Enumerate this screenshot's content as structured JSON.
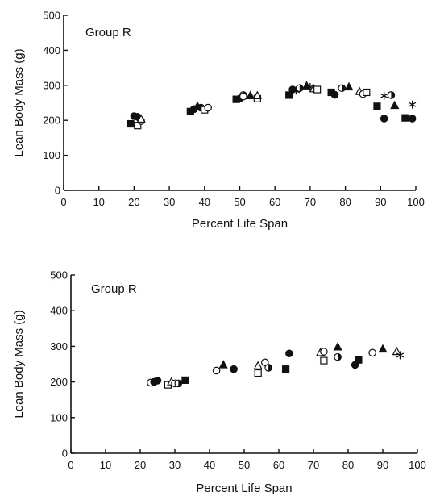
{
  "colors": {
    "ink": "#111111",
    "background": "#ffffff"
  },
  "chart_data": [
    {
      "type": "scatter",
      "title": "Group R",
      "xlabel": "Percent Life Span",
      "ylabel": "Lean Body Mass (g)",
      "xlim": [
        0,
        100
      ],
      "ylim": [
        0,
        500
      ],
      "xticks": [
        "0",
        "10",
        "20",
        "30",
        "40",
        "50",
        "60",
        "70",
        "80",
        "90",
        "100"
      ],
      "yticks": [
        "0",
        "100",
        "200",
        "300",
        "400",
        "500"
      ],
      "grid": false,
      "points": [
        {
          "x": 19,
          "y": 190,
          "m": "square-filled"
        },
        {
          "x": 20,
          "y": 212,
          "m": "circle-filled"
        },
        {
          "x": 21,
          "y": 210,
          "m": "circle-filled"
        },
        {
          "x": 21,
          "y": 185,
          "m": "square-open"
        },
        {
          "x": 22,
          "y": 198,
          "m": "circle-open"
        },
        {
          "x": 22,
          "y": 203,
          "m": "triangle-open"
        },
        {
          "x": 36,
          "y": 225,
          "m": "square-filled"
        },
        {
          "x": 37,
          "y": 232,
          "m": "circle-filled"
        },
        {
          "x": 38,
          "y": 240,
          "m": "triangle-filled"
        },
        {
          "x": 39,
          "y": 236,
          "m": "circle-filled"
        },
        {
          "x": 40,
          "y": 230,
          "m": "square-open"
        },
        {
          "x": 41,
          "y": 236,
          "m": "circle-open"
        },
        {
          "x": 49,
          "y": 260,
          "m": "square-filled"
        },
        {
          "x": 50,
          "y": 262,
          "m": "circle-filled"
        },
        {
          "x": 51,
          "y": 272,
          "m": "circle-half"
        },
        {
          "x": 51,
          "y": 268,
          "m": "circle-open"
        },
        {
          "x": 53,
          "y": 270,
          "m": "triangle-filled"
        },
        {
          "x": 55,
          "y": 262,
          "m": "square-open"
        },
        {
          "x": 55,
          "y": 270,
          "m": "triangle-open"
        },
        {
          "x": 64,
          "y": 272,
          "m": "square-filled"
        },
        {
          "x": 65,
          "y": 288,
          "m": "circle-filled"
        },
        {
          "x": 66,
          "y": 285,
          "m": "star"
        },
        {
          "x": 67,
          "y": 292,
          "m": "circle-half"
        },
        {
          "x": 69,
          "y": 298,
          "m": "triangle-filled"
        },
        {
          "x": 70,
          "y": 295,
          "m": "star"
        },
        {
          "x": 71,
          "y": 290,
          "m": "triangle-open"
        },
        {
          "x": 72,
          "y": 288,
          "m": "square-open"
        },
        {
          "x": 76,
          "y": 280,
          "m": "square-filled"
        },
        {
          "x": 77,
          "y": 273,
          "m": "circle-filled"
        },
        {
          "x": 79,
          "y": 292,
          "m": "circle-half"
        },
        {
          "x": 81,
          "y": 295,
          "m": "triangle-filled"
        },
        {
          "x": 84,
          "y": 282,
          "m": "triangle-open"
        },
        {
          "x": 85,
          "y": 275,
          "m": "circle-open"
        },
        {
          "x": 86,
          "y": 280,
          "m": "square-open"
        },
        {
          "x": 89,
          "y": 240,
          "m": "square-filled"
        },
        {
          "x": 91,
          "y": 205,
          "m": "circle-filled"
        },
        {
          "x": 91,
          "y": 270,
          "m": "star"
        },
        {
          "x": 93,
          "y": 272,
          "m": "circle-half"
        },
        {
          "x": 94,
          "y": 242,
          "m": "triangle-filled"
        },
        {
          "x": 97,
          "y": 207,
          "m": "square-filled"
        },
        {
          "x": 99,
          "y": 205,
          "m": "circle-filled"
        },
        {
          "x": 99,
          "y": 245,
          "m": "star"
        }
      ]
    },
    {
      "type": "scatter",
      "title": "Group R",
      "xlabel": "Percent Life Span",
      "ylabel": "Lean Body Mass (g)",
      "xlim": [
        0,
        100
      ],
      "ylim": [
        0,
        500
      ],
      "xticks": [
        "0",
        "10",
        "20",
        "30",
        "40",
        "50",
        "60",
        "70",
        "80",
        "90",
        "100"
      ],
      "yticks": [
        "0",
        "100",
        "200",
        "300",
        "400",
        "500"
      ],
      "grid": false,
      "points": [
        {
          "x": 23,
          "y": 198,
          "m": "circle-open"
        },
        {
          "x": 24,
          "y": 200,
          "m": "circle-filled"
        },
        {
          "x": 25,
          "y": 204,
          "m": "circle-filled"
        },
        {
          "x": 28,
          "y": 192,
          "m": "square-open"
        },
        {
          "x": 29,
          "y": 200,
          "m": "triangle-open"
        },
        {
          "x": 30,
          "y": 196,
          "m": "circle-open"
        },
        {
          "x": 31,
          "y": 196,
          "m": "circle-half"
        },
        {
          "x": 33,
          "y": 205,
          "m": "square-filled"
        },
        {
          "x": 42,
          "y": 232,
          "m": "circle-open"
        },
        {
          "x": 44,
          "y": 248,
          "m": "triangle-filled"
        },
        {
          "x": 47,
          "y": 236,
          "m": "circle-filled"
        },
        {
          "x": 54,
          "y": 225,
          "m": "square-open"
        },
        {
          "x": 54,
          "y": 245,
          "m": "triangle-open"
        },
        {
          "x": 56,
          "y": 255,
          "m": "circle-open"
        },
        {
          "x": 57,
          "y": 240,
          "m": "circle-half"
        },
        {
          "x": 62,
          "y": 236,
          "m": "square-filled"
        },
        {
          "x": 63,
          "y": 280,
          "m": "circle-filled"
        },
        {
          "x": 72,
          "y": 282,
          "m": "triangle-open"
        },
        {
          "x": 73,
          "y": 285,
          "m": "circle-open"
        },
        {
          "x": 73,
          "y": 260,
          "m": "square-open"
        },
        {
          "x": 77,
          "y": 298,
          "m": "triangle-filled"
        },
        {
          "x": 77,
          "y": 270,
          "m": "circle-half"
        },
        {
          "x": 82,
          "y": 248,
          "m": "circle-filled"
        },
        {
          "x": 83,
          "y": 262,
          "m": "square-filled"
        },
        {
          "x": 87,
          "y": 282,
          "m": "circle-open"
        },
        {
          "x": 90,
          "y": 292,
          "m": "triangle-filled"
        },
        {
          "x": 94,
          "y": 285,
          "m": "triangle-open"
        },
        {
          "x": 95,
          "y": 275,
          "m": "star"
        }
      ]
    }
  ]
}
